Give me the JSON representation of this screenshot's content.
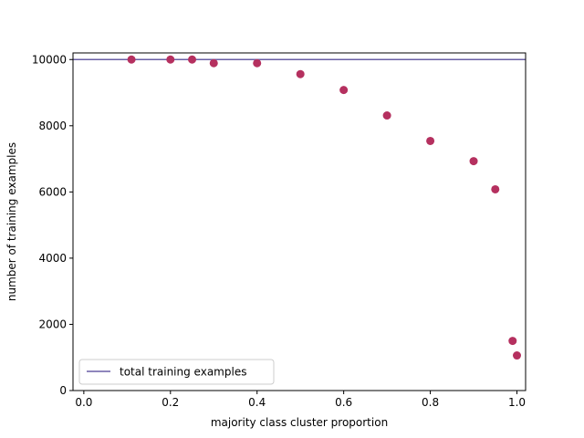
{
  "chart_data": {
    "type": "scatter",
    "title": "",
    "xlabel": "majority class cluster proportion",
    "ylabel": "number of training examples",
    "xlim": [
      -0.025,
      1.02
    ],
    "ylim": [
      0,
      10200
    ],
    "xticks": [
      0.0,
      0.2,
      0.4,
      0.6,
      0.8,
      1.0
    ],
    "xtick_labels": [
      "0.0",
      "0.2",
      "0.4",
      "0.6",
      "0.8",
      "1.0"
    ],
    "yticks": [
      0,
      2000,
      4000,
      6000,
      8000,
      10000
    ],
    "ytick_labels": [
      "0",
      "2000",
      "4000",
      "6000",
      "8000",
      "10000"
    ],
    "grid": false,
    "legend_position": "lower-left",
    "series": [
      {
        "kind": "points",
        "color": "#b5305f",
        "x": [
          0.11,
          0.2,
          0.25,
          0.3,
          0.4,
          0.5,
          0.6,
          0.7,
          0.8,
          0.9,
          0.95,
          0.99,
          1.0
        ],
        "y": [
          10000,
          10000,
          10000,
          9890,
          9890,
          9560,
          9080,
          8310,
          7540,
          6930,
          6080,
          1500,
          1060
        ]
      },
      {
        "kind": "hline",
        "name": "total training examples",
        "color": "#6a5fa5",
        "y": 10000
      }
    ]
  }
}
